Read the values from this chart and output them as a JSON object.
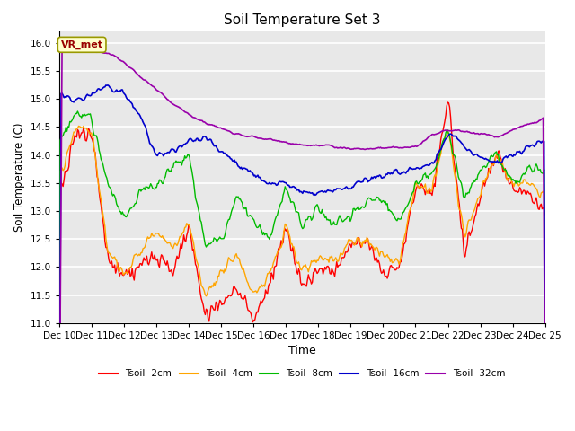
{
  "title": "Soil Temperature Set 3",
  "xlabel": "Time",
  "ylabel": "Soil Temperature (C)",
  "ylim": [
    11.0,
    16.2
  ],
  "yticks": [
    11.0,
    11.5,
    12.0,
    12.5,
    13.0,
    13.5,
    14.0,
    14.5,
    15.0,
    15.5,
    16.0
  ],
  "colors": {
    "Tsoil -2cm": "#ff0000",
    "Tsoil -4cm": "#ffa500",
    "Tsoil -8cm": "#00bb00",
    "Tsoil -16cm": "#0000cc",
    "Tsoil -32cm": "#9900aa"
  },
  "background_color": "#e8e8e8",
  "vr_met_box_facecolor": "#ffffcc",
  "vr_met_box_edgecolor": "#999900",
  "vr_met_text_color": "#990000",
  "grid_color": "#ffffff",
  "legend_labels": [
    "Tsoil -2cm",
    "Tsoil -4cm",
    "Tsoil -8cm",
    "Tsoil -16cm",
    "Tsoil -32cm"
  ],
  "t32_keypoints": [
    [
      0,
      15.95
    ],
    [
      0.3,
      15.88
    ],
    [
      0.6,
      15.92
    ],
    [
      1.0,
      15.85
    ],
    [
      1.5,
      15.82
    ],
    [
      2.0,
      15.65
    ],
    [
      2.5,
      15.4
    ],
    [
      3.0,
      15.15
    ],
    [
      3.5,
      14.9
    ],
    [
      4.0,
      14.72
    ],
    [
      4.5,
      14.58
    ],
    [
      5.0,
      14.47
    ],
    [
      5.5,
      14.38
    ],
    [
      6.0,
      14.32
    ],
    [
      6.5,
      14.27
    ],
    [
      7.0,
      14.22
    ],
    [
      7.5,
      14.18
    ],
    [
      8.0,
      14.16
    ],
    [
      8.5,
      14.14
    ],
    [
      9.0,
      14.12
    ],
    [
      9.5,
      14.11
    ],
    [
      10.0,
      14.12
    ],
    [
      10.5,
      14.13
    ],
    [
      11.0,
      14.15
    ],
    [
      11.5,
      14.35
    ],
    [
      12.0,
      14.45
    ],
    [
      12.5,
      14.42
    ],
    [
      13.0,
      14.38
    ],
    [
      13.5,
      14.32
    ],
    [
      14.0,
      14.45
    ],
    [
      14.5,
      14.55
    ],
    [
      15.0,
      14.65
    ]
  ],
  "t16_keypoints": [
    [
      0,
      15.1
    ],
    [
      0.5,
      14.95
    ],
    [
      1.0,
      15.1
    ],
    [
      1.5,
      15.22
    ],
    [
      2.0,
      15.1
    ],
    [
      2.5,
      14.7
    ],
    [
      3.0,
      13.95
    ],
    [
      3.5,
      14.05
    ],
    [
      4.0,
      14.25
    ],
    [
      4.5,
      14.3
    ],
    [
      5.0,
      14.05
    ],
    [
      5.5,
      13.85
    ],
    [
      6.0,
      13.65
    ],
    [
      6.5,
      13.5
    ],
    [
      7.0,
      13.45
    ],
    [
      7.5,
      13.35
    ],
    [
      8.0,
      13.3
    ],
    [
      8.5,
      13.35
    ],
    [
      9.0,
      13.45
    ],
    [
      9.5,
      13.55
    ],
    [
      10.0,
      13.65
    ],
    [
      10.5,
      13.7
    ],
    [
      11.0,
      13.75
    ],
    [
      11.5,
      13.85
    ],
    [
      12.0,
      14.4
    ],
    [
      12.5,
      14.15
    ],
    [
      13.0,
      13.95
    ],
    [
      13.5,
      13.85
    ],
    [
      14.0,
      14.0
    ],
    [
      14.5,
      14.1
    ],
    [
      15.0,
      14.3
    ]
  ],
  "t8_keypoints": [
    [
      0,
      14.22
    ],
    [
      0.5,
      14.75
    ],
    [
      1.0,
      14.65
    ],
    [
      1.5,
      13.5
    ],
    [
      2.0,
      12.85
    ],
    [
      2.5,
      13.35
    ],
    [
      3.0,
      13.45
    ],
    [
      3.5,
      13.8
    ],
    [
      4.0,
      13.95
    ],
    [
      4.5,
      12.4
    ],
    [
      5.0,
      12.45
    ],
    [
      5.5,
      13.3
    ],
    [
      6.0,
      12.8
    ],
    [
      6.5,
      12.5
    ],
    [
      7.0,
      13.45
    ],
    [
      7.5,
      12.7
    ],
    [
      8.0,
      13.05
    ],
    [
      8.5,
      12.75
    ],
    [
      9.0,
      12.9
    ],
    [
      9.5,
      13.2
    ],
    [
      10.0,
      13.2
    ],
    [
      10.5,
      12.75
    ],
    [
      11.0,
      13.5
    ],
    [
      11.5,
      13.65
    ],
    [
      12.0,
      14.45
    ],
    [
      12.5,
      13.2
    ],
    [
      13.0,
      13.75
    ],
    [
      13.5,
      14.0
    ],
    [
      14.0,
      13.5
    ],
    [
      14.5,
      13.75
    ],
    [
      15.0,
      13.7
    ]
  ],
  "t4_keypoints": [
    [
      0,
      13.6
    ],
    [
      0.5,
      14.5
    ],
    [
      1.0,
      14.45
    ],
    [
      1.5,
      12.3
    ],
    [
      2.0,
      11.85
    ],
    [
      2.5,
      12.25
    ],
    [
      3.0,
      12.65
    ],
    [
      3.5,
      12.3
    ],
    [
      4.0,
      12.75
    ],
    [
      4.5,
      11.5
    ],
    [
      5.0,
      11.9
    ],
    [
      5.5,
      12.25
    ],
    [
      6.0,
      11.5
    ],
    [
      6.5,
      11.85
    ],
    [
      7.0,
      12.75
    ],
    [
      7.5,
      11.9
    ],
    [
      8.0,
      12.2
    ],
    [
      8.5,
      12.1
    ],
    [
      9.0,
      12.5
    ],
    [
      9.5,
      12.5
    ],
    [
      10.0,
      12.2
    ],
    [
      10.5,
      12.1
    ],
    [
      11.0,
      13.5
    ],
    [
      11.5,
      13.35
    ],
    [
      12.0,
      14.5
    ],
    [
      12.5,
      12.5
    ],
    [
      13.0,
      13.35
    ],
    [
      13.5,
      14.0
    ],
    [
      14.0,
      13.45
    ],
    [
      14.5,
      13.5
    ],
    [
      15.0,
      13.3
    ]
  ],
  "t2_keypoints": [
    [
      0,
      13.3
    ],
    [
      0.5,
      14.4
    ],
    [
      1.0,
      14.35
    ],
    [
      1.5,
      12.1
    ],
    [
      2.0,
      11.85
    ],
    [
      2.5,
      12.0
    ],
    [
      3.0,
      12.2
    ],
    [
      3.5,
      11.9
    ],
    [
      4.0,
      12.7
    ],
    [
      4.5,
      11.1
    ],
    [
      5.0,
      11.35
    ],
    [
      5.5,
      11.65
    ],
    [
      6.0,
      11.1
    ],
    [
      6.5,
      11.7
    ],
    [
      7.0,
      12.7
    ],
    [
      7.5,
      11.65
    ],
    [
      8.0,
      12.0
    ],
    [
      8.5,
      11.95
    ],
    [
      9.0,
      12.4
    ],
    [
      9.5,
      12.45
    ],
    [
      10.0,
      11.85
    ],
    [
      10.5,
      12.0
    ],
    [
      11.0,
      13.5
    ],
    [
      11.5,
      13.3
    ],
    [
      12.0,
      15.0
    ],
    [
      12.5,
      12.15
    ],
    [
      13.0,
      13.3
    ],
    [
      13.5,
      14.0
    ],
    [
      14.0,
      13.4
    ],
    [
      14.5,
      13.25
    ],
    [
      15.0,
      13.0
    ]
  ]
}
